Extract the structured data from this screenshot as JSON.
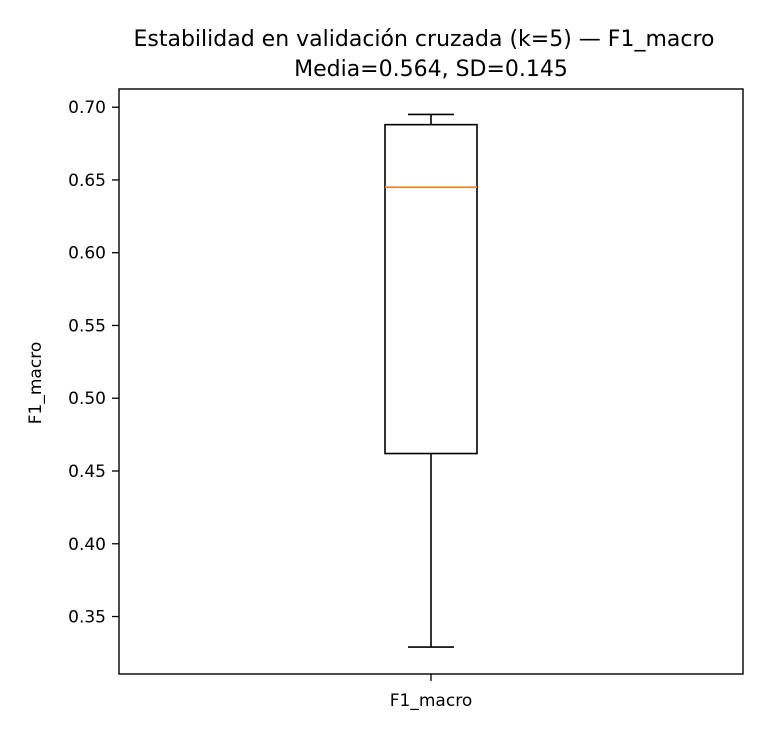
{
  "chart_data": {
    "type": "box",
    "title": "Estabilidad en validación cruzada (k=5) — F1_macro",
    "subtitle": "Media=0.564, SD=0.145",
    "xlabel": "",
    "ylabel": "F1_macro",
    "categories": [
      "F1_macro"
    ],
    "boxes": [
      {
        "name": "F1_macro",
        "whisker_low": 0.329,
        "q1": 0.462,
        "median": 0.645,
        "q3": 0.688,
        "whisker_high": 0.695
      }
    ],
    "ylim": [
      0.3105,
      0.7125
    ],
    "yticks": [
      "0.35",
      "0.40",
      "0.45",
      "0.50",
      "0.55",
      "0.60",
      "0.65",
      "0.70"
    ],
    "grid": false,
    "colors": {
      "box": "#000000",
      "median": "#ff7f0e"
    }
  }
}
